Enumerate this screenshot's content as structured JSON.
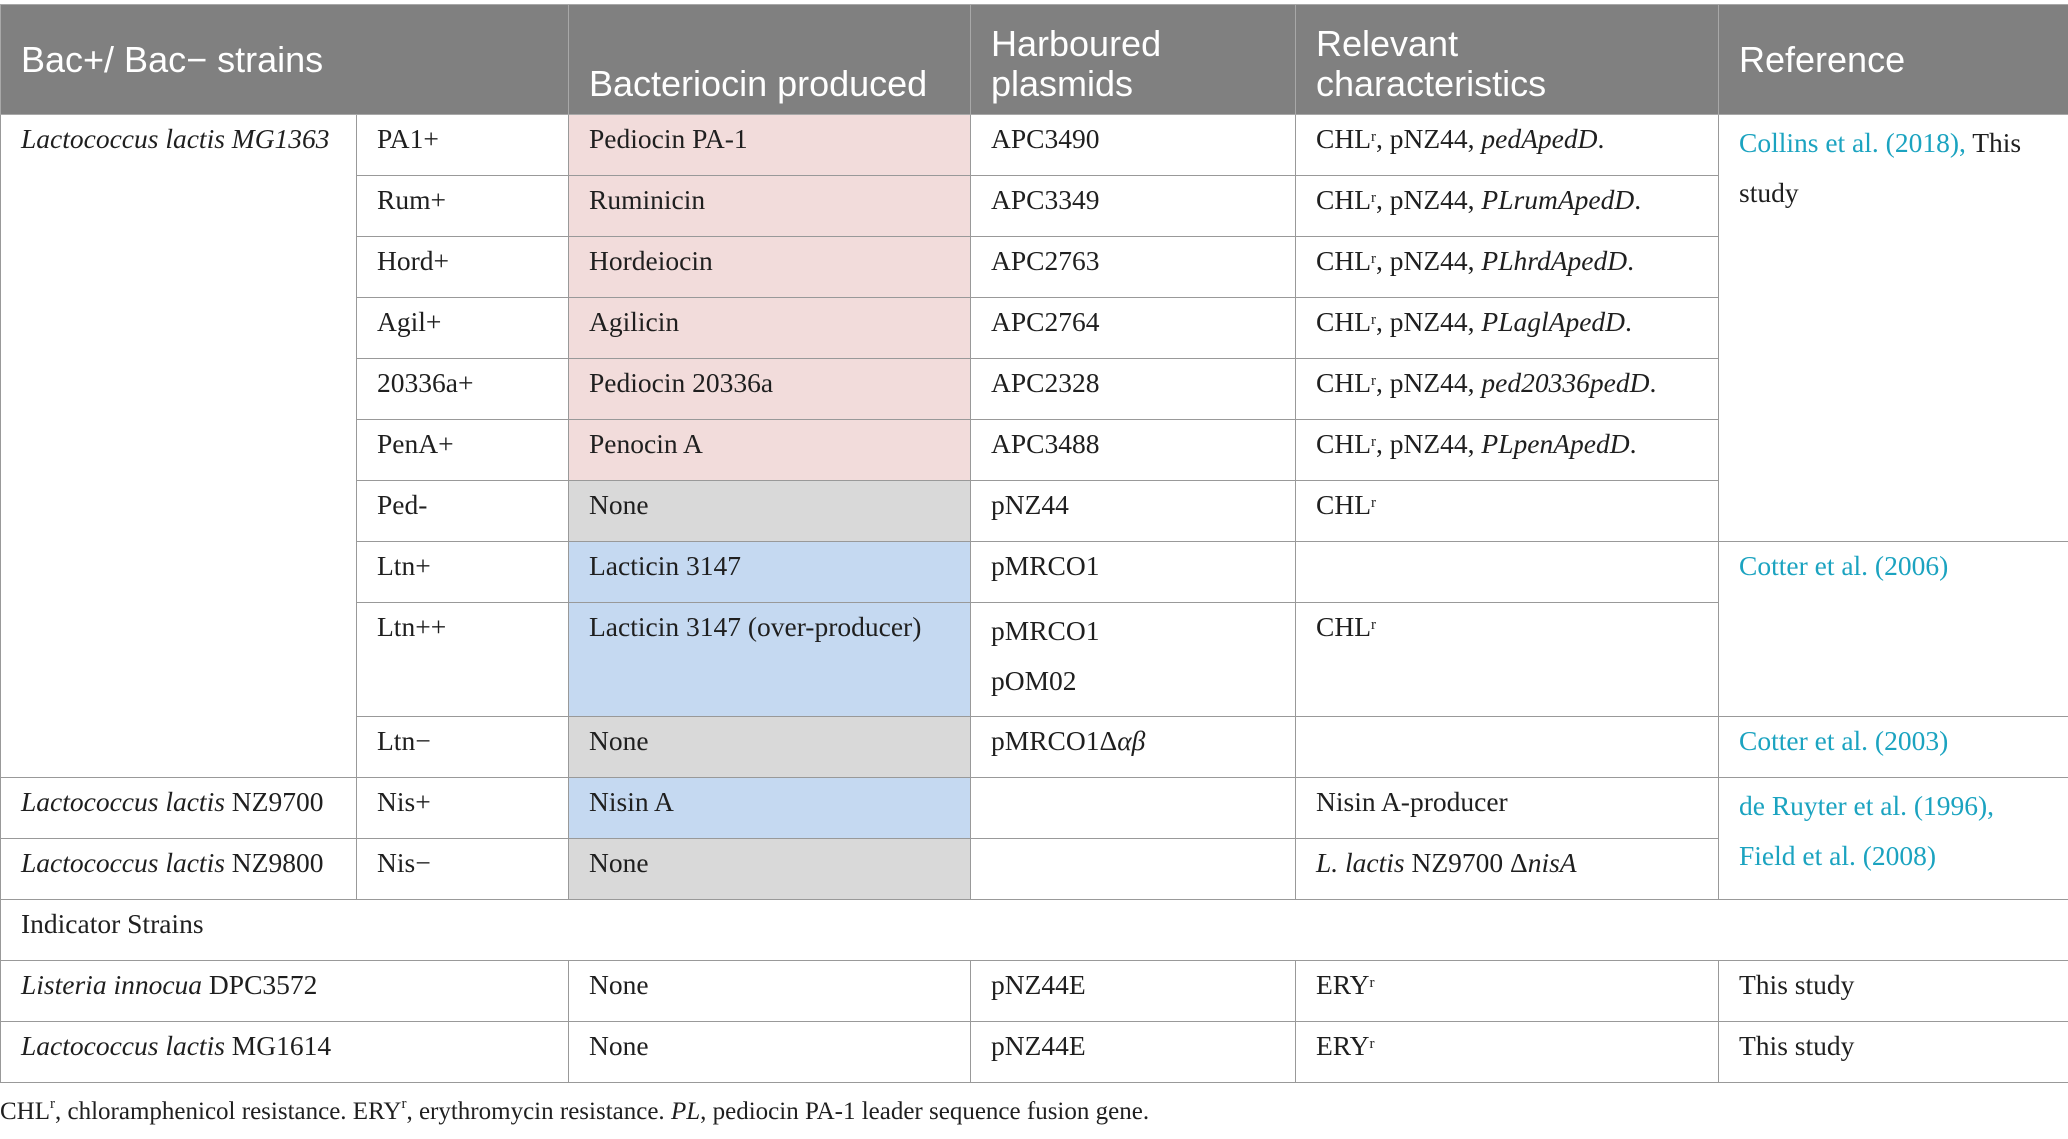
{
  "headers": {
    "strains": "Bac+/ Bac− strains",
    "bacteriocin": "Bacteriocin produced",
    "plasmids": "Harboured plasmids",
    "characteristics": "Relevant characteristics",
    "reference": "Reference"
  },
  "mg1363": "Lactococcus lactis MG1363",
  "rows": [
    {
      "code": "PA1+",
      "bact": "Pediocin PA-1",
      "plasmid": "APC3490",
      "char_pre": "CHL",
      "char_sup": "r",
      "char_mid": ", pNZ44, ",
      "char_it": "pedApedD",
      "char_post": "."
    },
    {
      "code": "Rum+",
      "bact": "Ruminicin",
      "plasmid": "APC3349",
      "char_pre": "CHL",
      "char_sup": "r",
      "char_mid": ", pNZ44, ",
      "char_it": "PLrumApedD",
      "char_post": "."
    },
    {
      "code": "Hord+",
      "bact": "Hordeiocin",
      "plasmid": "APC2763",
      "char_pre": "CHL",
      "char_sup": "r",
      "char_mid": ", pNZ44, ",
      "char_it": "PLhrdApedD",
      "char_post": "."
    },
    {
      "code": "Agil+",
      "bact": "Agilicin",
      "plasmid": "APC2764",
      "char_pre": "CHL",
      "char_sup": "r",
      "char_mid": ", pNZ44, ",
      "char_it": "PLaglApedD",
      "char_post": "."
    },
    {
      "code": "20336a+",
      "bact": "Pediocin 20336a",
      "plasmid": "APC2328",
      "char_pre": "CHL",
      "char_sup": "r",
      "char_mid": ", pNZ44, ",
      "char_it": "ped20336pedD",
      "char_post": "."
    },
    {
      "code": "PenA+",
      "bact": "Penocin A",
      "plasmid": "APC3488",
      "char_pre": "CHL",
      "char_sup": "r",
      "char_mid": ", pNZ44, ",
      "char_it": "PLpenApedD",
      "char_post": "."
    },
    {
      "code": "Ped-",
      "bact": "None",
      "plasmid": "pNZ44",
      "char_pre": "CHL",
      "char_sup": "r"
    },
    {
      "code": "Ltn+",
      "bact": "Lacticin 3147",
      "plasmid": "pMRCO1"
    },
    {
      "code": "Ltn++",
      "bact": "Lacticin 3147 (over-producer)",
      "plasmid": "pMRCO1",
      "plasmid2": "pOM02",
      "char_pre": "CHL",
      "char_sup": "r"
    },
    {
      "code": "Ltn−",
      "bact": "None",
      "plasmid": "pMRCO1Δ",
      "plasmid_it": "αβ"
    }
  ],
  "refs": {
    "collins": "Collins et al. (2018),",
    "collins_tail": " This study",
    "cotter2006": "Cotter et al. (2006)",
    "cotter2003": "Cotter et al. (2003)",
    "deruyter": "de Ruyter et al. (1996),",
    "field": "Field et al. (2008)",
    "this_study": "This study"
  },
  "nisin": [
    {
      "strain_it": "Lactococcus lactis",
      "strain_rest": " NZ9700",
      "code": "Nis+",
      "bact": "Nisin A",
      "char": "Nisin A-producer"
    },
    {
      "strain_it": "Lactococcus lactis",
      "strain_rest": " NZ9800",
      "code": "Nis−",
      "bact": "None",
      "char_it": "L. lactis",
      "char_mid": " NZ9700 Δ",
      "char_it2": "nisA"
    }
  ],
  "indicator_label": "Indicator Strains",
  "indicators": [
    {
      "strain_it": "Listeria innocua",
      "strain_rest": " DPC3572",
      "bact": "None",
      "plasmid": "pNZ44E",
      "char_pre": "ERY",
      "char_sup": "r",
      "ref": "This study"
    },
    {
      "strain_it": "Lactococcus lactis",
      "strain_rest": " MG1614",
      "bact": "None",
      "plasmid": "pNZ44E",
      "char_pre": "ERY",
      "char_sup": "r",
      "ref": "This study"
    }
  ],
  "footnote": {
    "p1": "CHL",
    "s1": "r",
    "p2": ", chloramphenicol resistance. ERY",
    "s2": "r",
    "p3": ", erythromycin resistance. ",
    "i1": "PL",
    "p4": ", pediocin PA-1 leader sequence fusion gene."
  },
  "colors": {
    "header_bg": "#808080",
    "pink": "#f2dcdb",
    "gray": "#d9d9d9",
    "blue": "#c5d9f1",
    "link": "#1ba3c0"
  }
}
